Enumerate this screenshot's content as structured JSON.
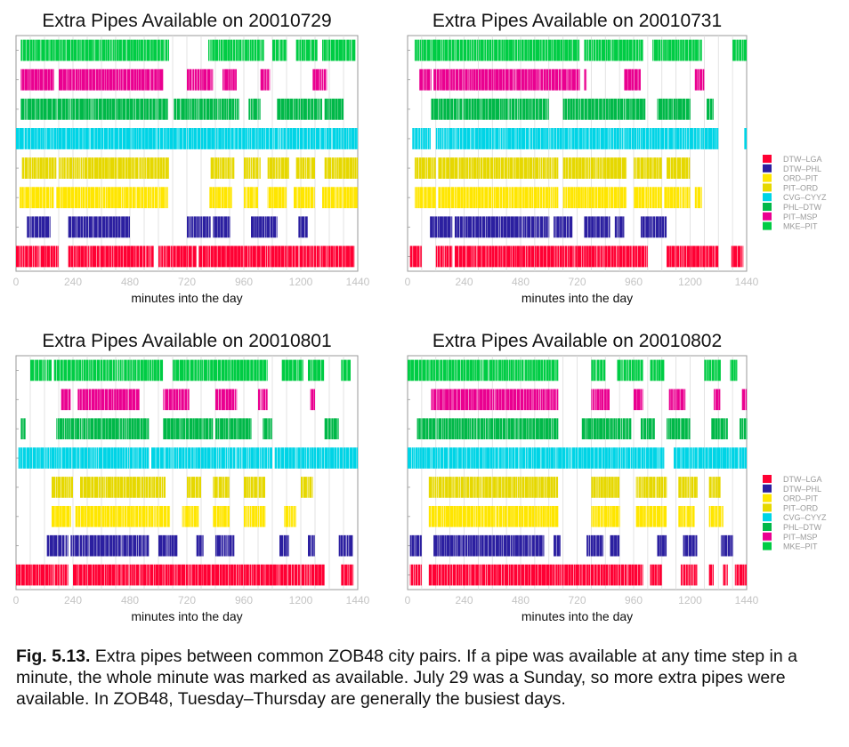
{
  "figure": {
    "caption_label": "Fig. 5.13.",
    "caption_text": "Extra pipes between common ZOB48 city pairs. If a pipe was available at any time step in a minute, the whole minute was marked as available. July 29 was a Sunday, so more extra pipes were available. In ZOB48, Tuesday–Thursday are generally the busiest days."
  },
  "chart_data": [
    {
      "type": "barcode",
      "title": "Extra Pipes Available on 20010729",
      "xlabel": "minutes into the day",
      "xlim": [
        0,
        1440
      ],
      "xticks": [
        0,
        240,
        480,
        720,
        960,
        1200,
        1440
      ],
      "series": [
        {
          "name": "DTW–LGA",
          "color": "#ff0033",
          "spans": [
            [
              0,
              180
            ],
            [
              220,
              580
            ],
            [
              600,
              760
            ],
            [
              770,
              1425
            ]
          ]
        },
        {
          "name": "DTW–PHL",
          "color": "#2b1fa0",
          "spans": [
            [
              45,
              145
            ],
            [
              220,
              480
            ],
            [
              720,
              820
            ],
            [
              830,
              900
            ],
            [
              990,
              1100
            ],
            [
              1190,
              1230
            ]
          ]
        },
        {
          "name": "ORD–PIT",
          "color": "#ffe600",
          "spans": [
            [
              15,
              160
            ],
            [
              170,
              640
            ],
            [
              815,
              910
            ],
            [
              960,
              1020
            ],
            [
              1060,
              1140
            ],
            [
              1170,
              1260
            ],
            [
              1290,
              1440
            ]
          ]
        },
        {
          "name": "PIT–ORD",
          "color": "#e6d800",
          "spans": [
            [
              25,
              170
            ],
            [
              180,
              645
            ],
            [
              820,
              920
            ],
            [
              960,
              1030
            ],
            [
              1060,
              1150
            ],
            [
              1180,
              1260
            ],
            [
              1300,
              1440
            ]
          ]
        },
        {
          "name": "CVG–CYYZ",
          "color": "#00d4e6",
          "spans": [
            [
              0,
              1440
            ]
          ]
        },
        {
          "name": "PHL–DTW",
          "color": "#00b848",
          "spans": [
            [
              20,
              640
            ],
            [
              665,
              940
            ],
            [
              980,
              1030
            ],
            [
              1100,
              1290
            ],
            [
              1300,
              1380
            ]
          ]
        },
        {
          "name": "PIT–MSP",
          "color": "#ea0090",
          "spans": [
            [
              20,
              160
            ],
            [
              180,
              620
            ],
            [
              720,
              830
            ],
            [
              870,
              930
            ],
            [
              1030,
              1070
            ],
            [
              1250,
              1310
            ]
          ]
        },
        {
          "name": "MKE–PIT",
          "color": "#00cc44",
          "spans": [
            [
              20,
              645
            ],
            [
              810,
              1045
            ],
            [
              1080,
              1140
            ],
            [
              1180,
              1270
            ],
            [
              1290,
              1430
            ]
          ]
        }
      ]
    },
    {
      "type": "barcode",
      "title": "Extra Pipes Available on 20010731",
      "xlabel": "minutes into the day",
      "xlim": [
        0,
        1440
      ],
      "xticks": [
        0,
        240,
        480,
        720,
        960,
        1200,
        1440
      ],
      "series": [
        {
          "name": "DTW–LGA",
          "color": "#ff0033",
          "spans": [
            [
              10,
              60
            ],
            [
              120,
              190
            ],
            [
              200,
              1020
            ],
            [
              1100,
              1320
            ],
            [
              1375,
              1425
            ]
          ]
        },
        {
          "name": "DTW–PHL",
          "color": "#2b1fa0",
          "spans": [
            [
              95,
              190
            ],
            [
              200,
              600
            ],
            [
              620,
              700
            ],
            [
              750,
              860
            ],
            [
              880,
              920
            ],
            [
              990,
              1100
            ]
          ]
        },
        {
          "name": "ORD–PIT",
          "color": "#ffe600",
          "spans": [
            [
              30,
              120
            ],
            [
              130,
              640
            ],
            [
              660,
              930
            ],
            [
              960,
              1080
            ],
            [
              1090,
              1200
            ],
            [
              1220,
              1250
            ]
          ]
        },
        {
          "name": "PIT–ORD",
          "color": "#e6d800",
          "spans": [
            [
              30,
              120
            ],
            [
              130,
              640
            ],
            [
              660,
              930
            ],
            [
              960,
              1080
            ],
            [
              1100,
              1200
            ]
          ]
        },
        {
          "name": "CVG–CYYZ",
          "color": "#00d4e6",
          "spans": [
            [
              20,
              100
            ],
            [
              120,
              1320
            ],
            [
              1430,
              1440
            ]
          ]
        },
        {
          "name": "PHL–DTW",
          "color": "#00b848",
          "spans": [
            [
              100,
              600
            ],
            [
              660,
              1010
            ],
            [
              1060,
              1200
            ],
            [
              1270,
              1300
            ]
          ]
        },
        {
          "name": "PIT–MSP",
          "color": "#ea0090",
          "spans": [
            [
              50,
              100
            ],
            [
              110,
              730
            ],
            [
              750,
              760
            ],
            [
              920,
              990
            ],
            [
              1220,
              1260
            ]
          ]
        },
        {
          "name": "MKE–PIT",
          "color": "#00cc44",
          "spans": [
            [
              30,
              120
            ],
            [
              110,
              730
            ],
            [
              750,
              1000
            ],
            [
              1040,
              1250
            ],
            [
              1380,
              1440
            ]
          ]
        }
      ]
    },
    {
      "type": "barcode",
      "title": "Extra Pipes Available on 20010801",
      "xlabel": "minutes into the day",
      "xlim": [
        0,
        1440
      ],
      "xticks": [
        0,
        240,
        480,
        720,
        960,
        1200,
        1440
      ],
      "series": [
        {
          "name": "DTW–LGA",
          "color": "#ff0033",
          "spans": [
            [
              0,
              220
            ],
            [
              240,
              1300
            ],
            [
              1370,
              1420
            ]
          ]
        },
        {
          "name": "DTW–PHL",
          "color": "#2b1fa0",
          "spans": [
            [
              130,
              220
            ],
            [
              230,
              560
            ],
            [
              600,
              680
            ],
            [
              760,
              790
            ],
            [
              840,
              920
            ],
            [
              1110,
              1150
            ],
            [
              1230,
              1260
            ],
            [
              1360,
              1420
            ]
          ]
        },
        {
          "name": "ORD–PIT",
          "color": "#ffe600",
          "spans": [
            [
              150,
              230
            ],
            [
              250,
              650
            ],
            [
              700,
              770
            ],
            [
              830,
              900
            ],
            [
              960,
              1050
            ],
            [
              1130,
              1180
            ]
          ]
        },
        {
          "name": "PIT–ORD",
          "color": "#e6d800",
          "spans": [
            [
              150,
              240
            ],
            [
              270,
              630
            ],
            [
              720,
              780
            ],
            [
              830,
              900
            ],
            [
              960,
              1050
            ],
            [
              1200,
              1250
            ]
          ]
        },
        {
          "name": "CVG–CYYZ",
          "color": "#00d4e6",
          "spans": [
            [
              10,
              560
            ],
            [
              570,
              1080
            ],
            [
              1090,
              1440
            ]
          ]
        },
        {
          "name": "PHL–DTW",
          "color": "#00b848",
          "spans": [
            [
              20,
              40
            ],
            [
              170,
              560
            ],
            [
              620,
              830
            ],
            [
              840,
              990
            ],
            [
              1040,
              1080
            ],
            [
              1300,
              1360
            ]
          ]
        },
        {
          "name": "PIT–MSP",
          "color": "#ea0090",
          "spans": [
            [
              190,
              230
            ],
            [
              260,
              520
            ],
            [
              620,
              730
            ],
            [
              840,
              930
            ],
            [
              1020,
              1060
            ],
            [
              1240,
              1260
            ]
          ]
        },
        {
          "name": "MKE–PIT",
          "color": "#00cc44",
          "spans": [
            [
              60,
              150
            ],
            [
              160,
              620
            ],
            [
              660,
              1060
            ],
            [
              1120,
              1210
            ],
            [
              1230,
              1300
            ],
            [
              1370,
              1410
            ]
          ]
        }
      ]
    },
    {
      "type": "barcode",
      "title": "Extra Pipes Available on 20010802",
      "xlabel": "minutes into the day",
      "xlim": [
        0,
        1440
      ],
      "xticks": [
        0,
        240,
        480,
        720,
        960,
        1200,
        1440
      ],
      "series": [
        {
          "name": "DTW–LGA",
          "color": "#ff0033",
          "spans": [
            [
              10,
              60
            ],
            [
              90,
              1000
            ],
            [
              1030,
              1080
            ],
            [
              1160,
              1230
            ],
            [
              1280,
              1300
            ],
            [
              1340,
              1360
            ],
            [
              1390,
              1440
            ]
          ]
        },
        {
          "name": "DTW–PHL",
          "color": "#2b1fa0",
          "spans": [
            [
              10,
              60
            ],
            [
              110,
              580
            ],
            [
              620,
              650
            ],
            [
              760,
              830
            ],
            [
              860,
              900
            ],
            [
              1060,
              1100
            ],
            [
              1170,
              1230
            ],
            [
              1330,
              1380
            ]
          ]
        },
        {
          "name": "ORD–PIT",
          "color": "#ffe600",
          "spans": [
            [
              90,
              640
            ],
            [
              780,
              900
            ],
            [
              970,
              1100
            ],
            [
              1150,
              1220
            ],
            [
              1280,
              1340
            ]
          ]
        },
        {
          "name": "PIT–ORD",
          "color": "#e6d800",
          "spans": [
            [
              90,
              640
            ],
            [
              780,
              900
            ],
            [
              970,
              1100
            ],
            [
              1150,
              1230
            ],
            [
              1280,
              1330
            ]
          ]
        },
        {
          "name": "CVG–CYYZ",
          "color": "#00d4e6",
          "spans": [
            [
              0,
              1090
            ],
            [
              1130,
              1440
            ]
          ]
        },
        {
          "name": "PHL–DTW",
          "color": "#00b848",
          "spans": [
            [
              40,
              640
            ],
            [
              740,
              950
            ],
            [
              990,
              1050
            ],
            [
              1100,
              1200
            ],
            [
              1290,
              1360
            ],
            [
              1410,
              1440
            ]
          ]
        },
        {
          "name": "PIT–MSP",
          "color": "#ea0090",
          "spans": [
            [
              100,
              640
            ],
            [
              780,
              860
            ],
            [
              960,
              1000
            ],
            [
              1110,
              1180
            ],
            [
              1300,
              1330
            ],
            [
              1420,
              1440
            ]
          ]
        },
        {
          "name": "MKE–PIT",
          "color": "#00cc44",
          "spans": [
            [
              0,
              640
            ],
            [
              780,
              840
            ],
            [
              890,
              1000
            ],
            [
              1030,
              1090
            ],
            [
              1260,
              1330
            ],
            [
              1370,
              1400
            ]
          ]
        }
      ]
    }
  ],
  "legend": {
    "items": [
      {
        "label": "DTW–LGA",
        "color": "#ff0033"
      },
      {
        "label": "DTW–PHL",
        "color": "#2b1fa0"
      },
      {
        "label": "ORD–PIT",
        "color": "#ffe600"
      },
      {
        "label": "PIT–ORD",
        "color": "#e6d800"
      },
      {
        "label": "CVG–CYYZ",
        "color": "#00d4e6"
      },
      {
        "label": "PHL–DTW",
        "color": "#00b848"
      },
      {
        "label": "PIT–MSP",
        "color": "#ea0090"
      },
      {
        "label": "MKE–PIT",
        "color": "#00cc44"
      }
    ]
  }
}
